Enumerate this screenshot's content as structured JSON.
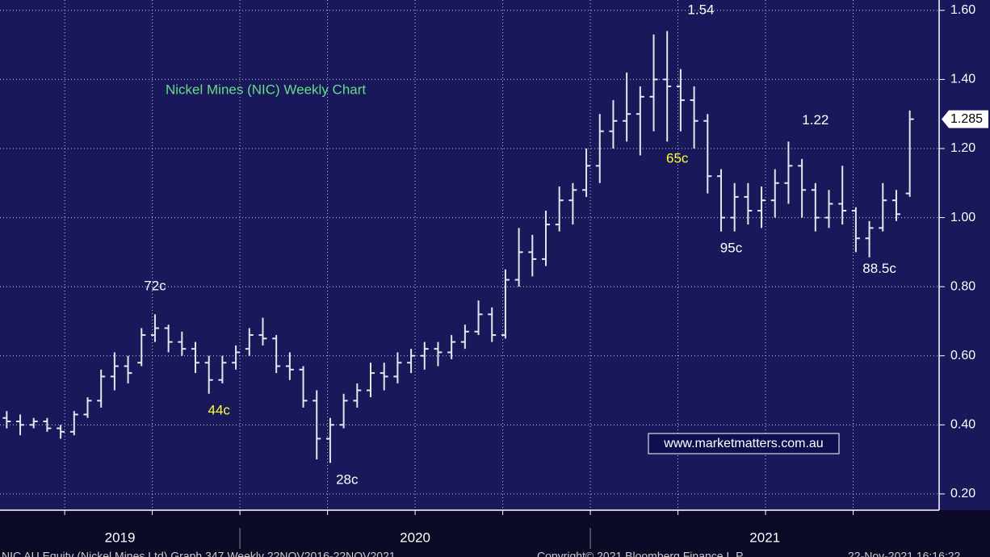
{
  "chart_data": {
    "type": "ohlc",
    "title": "Nickel Mines (NIC) Weekly Chart",
    "watermark": "www.marketmatters.com.au",
    "footer": [
      "NIC AU Equity (Nickel Mines Ltd) Graph 347 Weekly 22NOV2016-22NOV2021",
      "Copyright© 2021 Bloomberg Finance L.P.",
      "22-Nov-2021 16:16:22"
    ],
    "color": "#e6e6ee",
    "grid": true,
    "xlim": [
      0,
      136
    ],
    "xticks": [
      {
        "value": 17.8,
        "label": "2019"
      },
      {
        "value": 61.6,
        "label": "2020"
      },
      {
        "value": 113.5,
        "label": "2021"
      }
    ],
    "xgrid": [
      9.6,
      22.6,
      35.6,
      48.6,
      61.6,
      74.6,
      87.6,
      100.6,
      113.6,
      126.6
    ],
    "year_dividers": [
      35.6,
      87.6
    ],
    "ylim": [
      0.153,
      1.63
    ],
    "yticks": [
      {
        "value": 0.2,
        "label": "0.20"
      },
      {
        "value": 0.4,
        "label": "0.40"
      },
      {
        "value": 0.6,
        "label": "0.60"
      },
      {
        "value": 0.8,
        "label": "0.80"
      },
      {
        "value": 1.0,
        "label": "1.00"
      },
      {
        "value": 1.2,
        "label": "1.20"
      },
      {
        "value": 1.4,
        "label": "1.40"
      },
      {
        "value": 1.6,
        "label": "1.60"
      }
    ],
    "annotations": [
      {
        "text": "72c",
        "color": "#ffffff",
        "x": 23,
        "y": 0.8
      },
      {
        "text": "44c",
        "color": "#ffff33",
        "x": 32.5,
        "y": 0.44
      },
      {
        "text": "28c",
        "color": "#ffffff",
        "x": 51.5,
        "y": 0.24
      },
      {
        "text": "65c",
        "color": "#ffff33",
        "x": 100.5,
        "y": 1.17
      },
      {
        "text": "1.54",
        "color": "#ffffff",
        "x": 104,
        "y": 1.6
      },
      {
        "text": "95c",
        "color": "#ffffff",
        "x": 108.5,
        "y": 0.91
      },
      {
        "text": "1.22",
        "color": "#ffffff",
        "x": 121,
        "y": 1.28
      },
      {
        "text": "88.5c",
        "color": "#ffffff",
        "x": 130.5,
        "y": 0.85
      }
    ],
    "x": [
      1,
      3,
      5,
      7,
      9,
      11,
      13,
      15,
      17,
      19,
      21,
      23,
      25,
      27,
      29,
      31,
      33,
      35,
      37,
      39,
      41,
      43,
      45,
      47,
      49,
      51,
      53,
      55,
      57,
      59,
      61,
      63,
      65,
      67,
      69,
      71,
      73,
      75,
      77,
      79,
      81,
      83,
      85,
      87,
      89,
      91,
      93,
      95,
      97,
      99,
      101,
      103,
      105,
      107,
      109,
      111,
      113,
      115,
      117,
      119,
      121,
      123,
      125,
      127,
      129,
      131,
      133,
      135
    ],
    "open": [
      0.42,
      0.41,
      0.4,
      0.41,
      0.39,
      0.38,
      0.43,
      0.47,
      0.54,
      0.57,
      0.58,
      0.66,
      0.68,
      0.64,
      0.62,
      0.58,
      0.53,
      0.58,
      0.62,
      0.66,
      0.65,
      0.57,
      0.56,
      0.47,
      0.36,
      0.4,
      0.47,
      0.5,
      0.55,
      0.54,
      0.58,
      0.6,
      0.62,
      0.61,
      0.64,
      0.67,
      0.72,
      0.66,
      0.82,
      0.9,
      0.88,
      0.98,
      1.05,
      1.08,
      1.15,
      1.25,
      1.28,
      1.3,
      1.35,
      1.4,
      1.38,
      1.34,
      1.28,
      1.12,
      1.0,
      1.06,
      1.02,
      1.05,
      1.1,
      1.15,
      1.08,
      1.0,
      1.04,
      1.02,
      0.94,
      0.97,
      1.05,
      1.07
    ],
    "high": [
      0.44,
      0.43,
      0.42,
      0.42,
      0.4,
      0.44,
      0.48,
      0.56,
      0.61,
      0.6,
      0.68,
      0.72,
      0.69,
      0.67,
      0.64,
      0.6,
      0.6,
      0.63,
      0.68,
      0.71,
      0.66,
      0.61,
      0.57,
      0.5,
      0.42,
      0.49,
      0.52,
      0.58,
      0.58,
      0.61,
      0.62,
      0.64,
      0.64,
      0.66,
      0.69,
      0.76,
      0.74,
      0.85,
      0.97,
      0.95,
      1.02,
      1.09,
      1.1,
      1.2,
      1.3,
      1.34,
      1.42,
      1.38,
      1.53,
      1.54,
      1.43,
      1.38,
      1.3,
      1.14,
      1.1,
      1.1,
      1.09,
      1.14,
      1.22,
      1.17,
      1.1,
      1.08,
      1.15,
      1.03,
      0.99,
      1.1,
      1.08,
      1.31
    ],
    "low": [
      0.39,
      0.37,
      0.39,
      0.38,
      0.36,
      0.37,
      0.42,
      0.45,
      0.5,
      0.52,
      0.57,
      0.64,
      0.61,
      0.6,
      0.55,
      0.49,
      0.52,
      0.56,
      0.6,
      0.63,
      0.55,
      0.53,
      0.45,
      0.3,
      0.29,
      0.39,
      0.45,
      0.48,
      0.5,
      0.52,
      0.55,
      0.56,
      0.57,
      0.59,
      0.62,
      0.66,
      0.64,
      0.65,
      0.8,
      0.83,
      0.86,
      0.96,
      0.98,
      1.06,
      1.1,
      1.2,
      1.22,
      1.18,
      1.25,
      1.22,
      1.25,
      1.2,
      1.07,
      0.96,
      0.96,
      0.98,
      0.97,
      1.0,
      1.04,
      1.0,
      0.96,
      0.97,
      0.98,
      0.9,
      0.885,
      0.96,
      0.99,
      1.06
    ],
    "close": [
      0.41,
      0.4,
      0.41,
      0.39,
      0.38,
      0.43,
      0.47,
      0.54,
      0.57,
      0.55,
      0.66,
      0.68,
      0.64,
      0.62,
      0.58,
      0.53,
      0.58,
      0.61,
      0.66,
      0.65,
      0.57,
      0.56,
      0.47,
      0.36,
      0.4,
      0.47,
      0.5,
      0.55,
      0.54,
      0.58,
      0.6,
      0.62,
      0.61,
      0.64,
      0.67,
      0.72,
      0.66,
      0.82,
      0.9,
      0.88,
      0.98,
      1.05,
      1.08,
      1.15,
      1.25,
      1.28,
      1.3,
      1.35,
      1.4,
      1.38,
      1.34,
      1.28,
      1.12,
      1.0,
      1.06,
      1.02,
      1.05,
      1.1,
      1.15,
      1.08,
      1.0,
      1.04,
      1.02,
      0.94,
      0.97,
      1.05,
      1.01,
      1.285
    ]
  }
}
